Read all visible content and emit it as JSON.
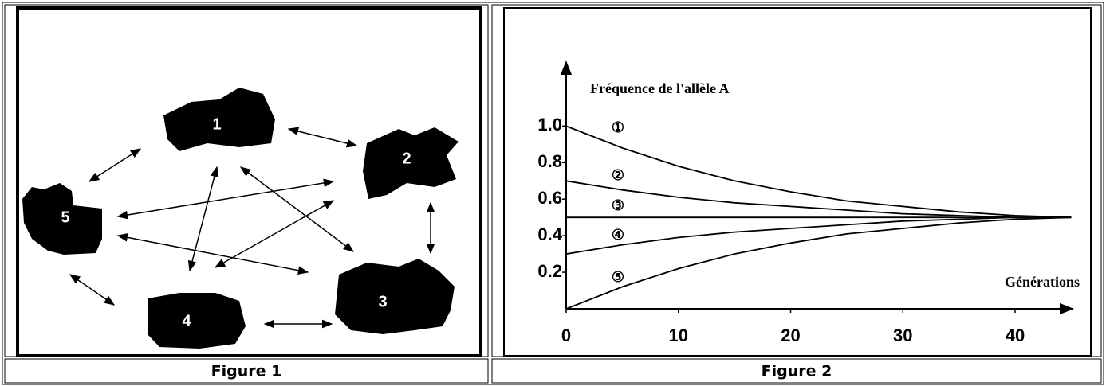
{
  "captions": [
    "Figure 1",
    "Figure 2"
  ],
  "figure1": {
    "nodes": [
      "1",
      "2",
      "3",
      "4",
      "5"
    ]
  },
  "chart_data": {
    "type": "line",
    "y_label": "Fréquence de l'allèle A",
    "x_label": "Générations",
    "x": [
      0,
      5,
      10,
      15,
      20,
      25,
      30,
      35,
      40,
      45
    ],
    "series": [
      {
        "name": "①",
        "color": "#000",
        "values": [
          1.0,
          0.88,
          0.78,
          0.7,
          0.64,
          0.59,
          0.56,
          0.53,
          0.51,
          0.5
        ]
      },
      {
        "name": "②",
        "color": "#000",
        "values": [
          0.7,
          0.65,
          0.61,
          0.58,
          0.56,
          0.54,
          0.52,
          0.51,
          0.5,
          0.5
        ]
      },
      {
        "name": "③",
        "color": "#000",
        "values": [
          0.5,
          0.5,
          0.5,
          0.5,
          0.5,
          0.5,
          0.5,
          0.5,
          0.5,
          0.5
        ]
      },
      {
        "name": "④",
        "color": "#000",
        "values": [
          0.3,
          0.35,
          0.39,
          0.42,
          0.44,
          0.46,
          0.48,
          0.49,
          0.5,
          0.5
        ]
      },
      {
        "name": "⑤",
        "color": "#000",
        "values": [
          0.0,
          0.12,
          0.22,
          0.3,
          0.36,
          0.41,
          0.44,
          0.47,
          0.49,
          0.5
        ]
      }
    ],
    "xlim": [
      0,
      46
    ],
    "ylim": [
      0,
      1.35
    ],
    "xticks": [
      0,
      10,
      20,
      30,
      40
    ],
    "yticks": [
      0.2,
      0.4,
      0.6,
      0.8,
      {
        "value": 1,
        "label": "1.0"
      }
    ]
  }
}
